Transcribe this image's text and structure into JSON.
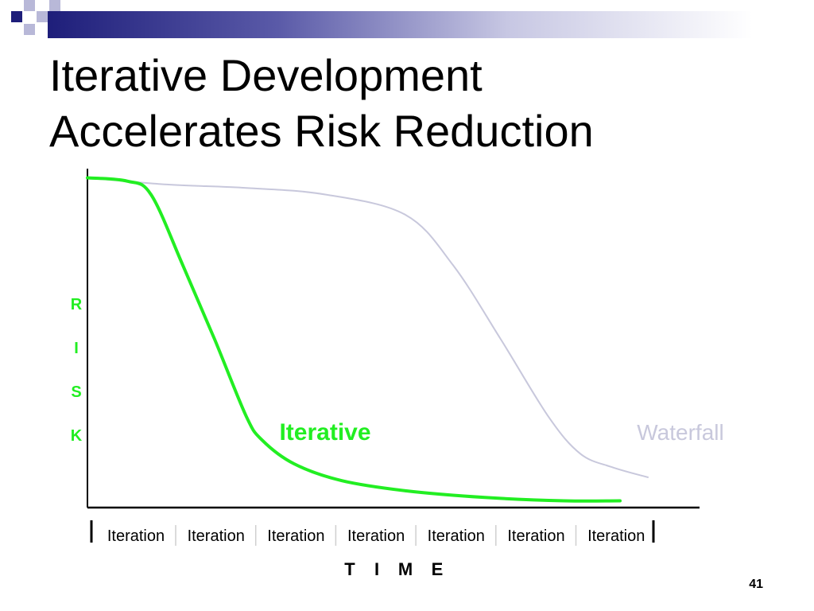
{
  "slide": {
    "title_line1": "Iterative Development",
    "title_line2": "Accelerates Risk Reduction",
    "page_number": "41"
  },
  "colors": {
    "banner_dark": "#1e1e7a",
    "iterative": "#22ee22",
    "waterfall": "#c8c8dc",
    "axis": "#000000"
  },
  "chart_data": {
    "type": "line",
    "ylabel_letters": [
      "R",
      "I",
      "S",
      "K"
    ],
    "xlabel_letters": [
      "T",
      "I",
      "M",
      "E"
    ],
    "x_tick_labels": [
      "Iteration",
      "Iteration",
      "Iteration",
      "Iteration",
      "Iteration",
      "Iteration",
      "Iteration"
    ],
    "xlim": [
      0,
      7
    ],
    "ylim": [
      0,
      1
    ],
    "grid": false,
    "series": [
      {
        "name": "Iterative",
        "color": "#22ee22",
        "points": [
          [
            0,
            0.98
          ],
          [
            0.5,
            0.97
          ],
          [
            0.8,
            0.93
          ],
          [
            1.2,
            0.72
          ],
          [
            1.6,
            0.5
          ],
          [
            2.0,
            0.27
          ],
          [
            2.2,
            0.2
          ],
          [
            2.6,
            0.13
          ],
          [
            3.2,
            0.08
          ],
          [
            4.0,
            0.05
          ],
          [
            5.0,
            0.03
          ],
          [
            6.0,
            0.02
          ],
          [
            6.7,
            0.02
          ]
        ]
      },
      {
        "name": "Waterfall",
        "color": "#c8c8dc",
        "points": [
          [
            0,
            0.98
          ],
          [
            1.0,
            0.96
          ],
          [
            2.0,
            0.95
          ],
          [
            3.0,
            0.93
          ],
          [
            4.0,
            0.87
          ],
          [
            4.6,
            0.72
          ],
          [
            5.2,
            0.5
          ],
          [
            5.8,
            0.27
          ],
          [
            6.2,
            0.16
          ],
          [
            6.6,
            0.12
          ],
          [
            7.05,
            0.09
          ]
        ]
      }
    ]
  }
}
